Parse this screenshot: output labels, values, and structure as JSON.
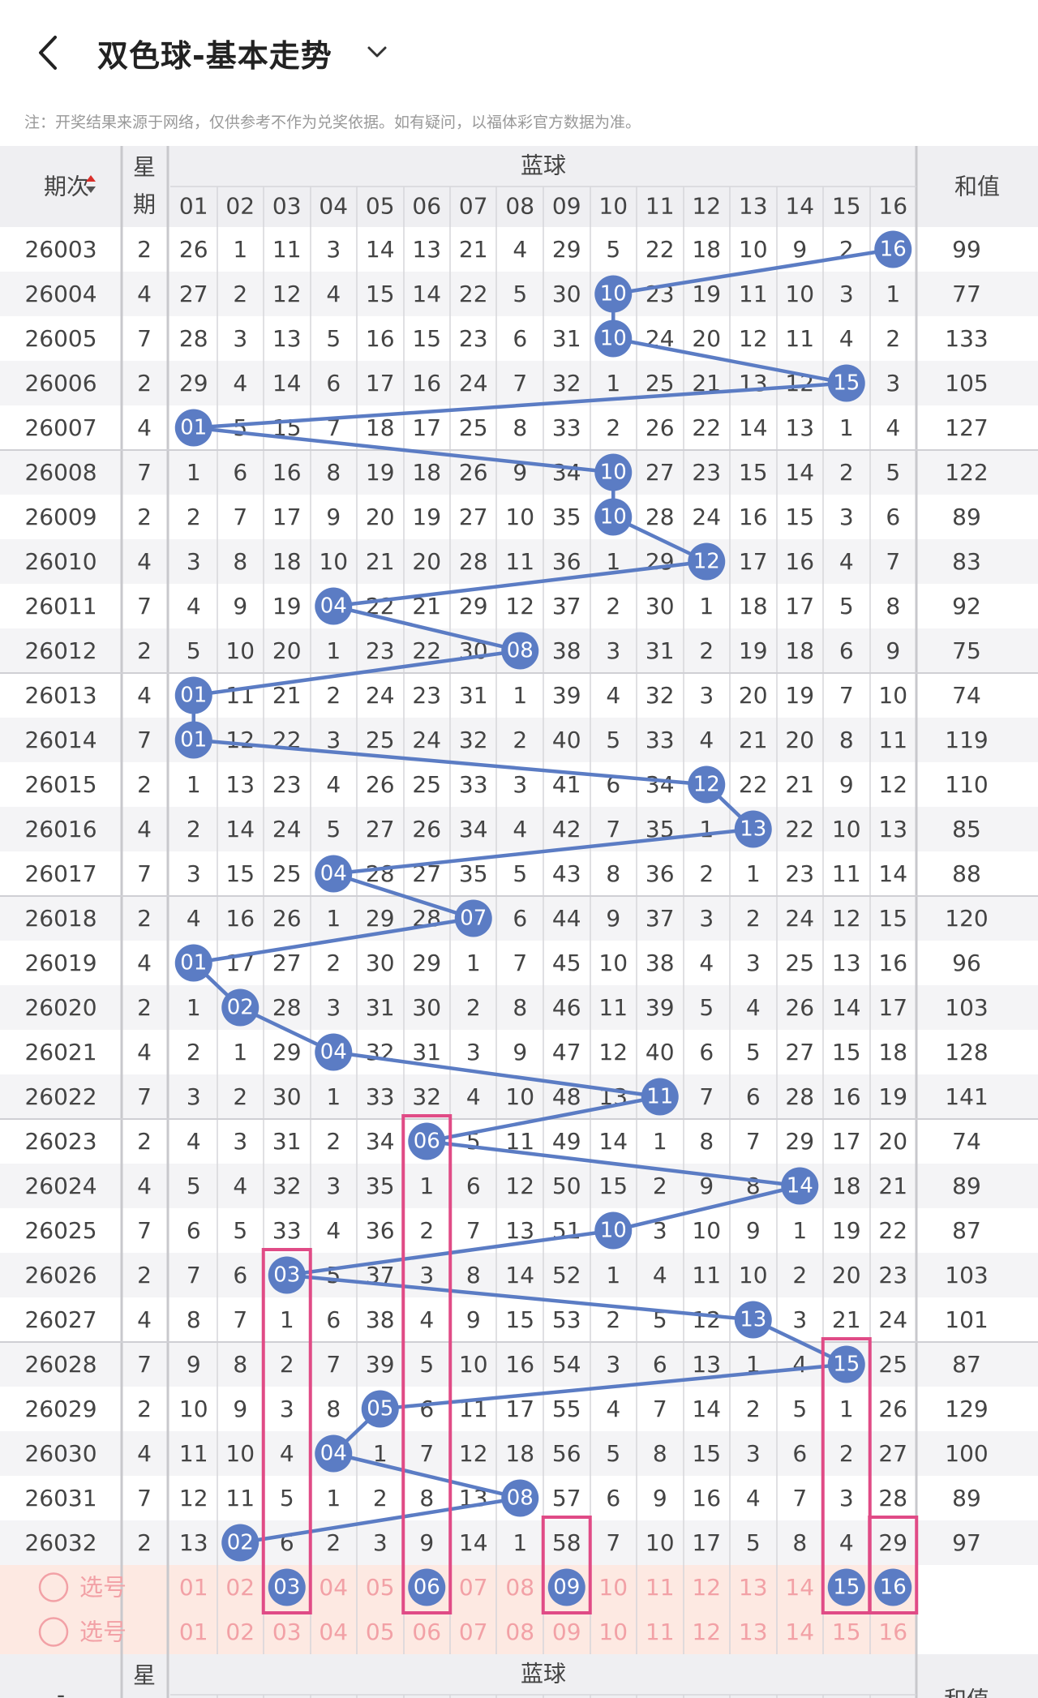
{
  "header": {
    "title": "双色球-基本走势",
    "note": "注：开奖结果来源于网络，仅供参考不作为兑奖依据。如有疑问，以福体彩官方数据为准。"
  },
  "table": {
    "col_period": "期次",
    "col_week_top": "星",
    "col_week_bottom": "期",
    "group_label": "蓝球",
    "col_sum": "和值",
    "ball_headers": [
      "01",
      "02",
      "03",
      "04",
      "05",
      "06",
      "07",
      "08",
      "09",
      "10",
      "11",
      "12",
      "13",
      "14",
      "15",
      "16"
    ],
    "rows": [
      {
        "period": "26003",
        "week": "2",
        "cells": [
          "26",
          "1",
          "11",
          "3",
          "14",
          "13",
          "21",
          "4",
          "29",
          "5",
          "22",
          "18",
          "10",
          "9",
          "2",
          "16"
        ],
        "hit": 16,
        "sum": "99"
      },
      {
        "period": "26004",
        "week": "4",
        "cells": [
          "27",
          "2",
          "12",
          "4",
          "15",
          "14",
          "22",
          "5",
          "30",
          "10",
          "23",
          "19",
          "11",
          "10",
          "3",
          "1"
        ],
        "hit": 10,
        "sum": "77"
      },
      {
        "period": "26005",
        "week": "7",
        "cells": [
          "28",
          "3",
          "13",
          "5",
          "16",
          "15",
          "23",
          "6",
          "31",
          "10",
          "24",
          "20",
          "12",
          "11",
          "4",
          "2"
        ],
        "hit": 10,
        "sum": "133"
      },
      {
        "period": "26006",
        "week": "2",
        "cells": [
          "29",
          "4",
          "14",
          "6",
          "17",
          "16",
          "24",
          "7",
          "32",
          "1",
          "25",
          "21",
          "13",
          "12",
          "15",
          "3"
        ],
        "hit": 15,
        "sum": "105"
      },
      {
        "period": "26007",
        "week": "4",
        "cells": [
          "01",
          "5",
          "15",
          "7",
          "18",
          "17",
          "25",
          "8",
          "33",
          "2",
          "26",
          "22",
          "14",
          "13",
          "1",
          "4"
        ],
        "hit": 1,
        "sum": "127"
      },
      {
        "period": "26008",
        "week": "7",
        "cells": [
          "1",
          "6",
          "16",
          "8",
          "19",
          "18",
          "26",
          "9",
          "34",
          "10",
          "27",
          "23",
          "15",
          "14",
          "2",
          "5"
        ],
        "hit": 10,
        "sum": "122"
      },
      {
        "period": "26009",
        "week": "2",
        "cells": [
          "2",
          "7",
          "17",
          "9",
          "20",
          "19",
          "27",
          "10",
          "35",
          "10",
          "28",
          "24",
          "16",
          "15",
          "3",
          "6"
        ],
        "hit": 10,
        "sum": "89"
      },
      {
        "period": "26010",
        "week": "4",
        "cells": [
          "3",
          "8",
          "18",
          "10",
          "21",
          "20",
          "28",
          "11",
          "36",
          "1",
          "29",
          "12",
          "17",
          "16",
          "4",
          "7"
        ],
        "hit": 12,
        "sum": "83"
      },
      {
        "period": "26011",
        "week": "7",
        "cells": [
          "4",
          "9",
          "19",
          "04",
          "22",
          "21",
          "29",
          "12",
          "37",
          "2",
          "30",
          "1",
          "18",
          "17",
          "5",
          "8"
        ],
        "hit": 4,
        "sum": "92"
      },
      {
        "period": "26012",
        "week": "2",
        "cells": [
          "5",
          "10",
          "20",
          "1",
          "23",
          "22",
          "30",
          "08",
          "38",
          "3",
          "31",
          "2",
          "19",
          "18",
          "6",
          "9"
        ],
        "hit": 8,
        "sum": "75"
      },
      {
        "period": "26013",
        "week": "4",
        "cells": [
          "01",
          "11",
          "21",
          "2",
          "24",
          "23",
          "31",
          "1",
          "39",
          "4",
          "32",
          "3",
          "20",
          "19",
          "7",
          "10"
        ],
        "hit": 1,
        "sum": "74"
      },
      {
        "period": "26014",
        "week": "7",
        "cells": [
          "01",
          "12",
          "22",
          "3",
          "25",
          "24",
          "32",
          "2",
          "40",
          "5",
          "33",
          "4",
          "21",
          "20",
          "8",
          "11"
        ],
        "hit": 1,
        "sum": "119"
      },
      {
        "period": "26015",
        "week": "2",
        "cells": [
          "1",
          "13",
          "23",
          "4",
          "26",
          "25",
          "33",
          "3",
          "41",
          "6",
          "34",
          "12",
          "22",
          "21",
          "9",
          "12"
        ],
        "hit": 12,
        "sum": "110"
      },
      {
        "period": "26016",
        "week": "4",
        "cells": [
          "2",
          "14",
          "24",
          "5",
          "27",
          "26",
          "34",
          "4",
          "42",
          "7",
          "35",
          "1",
          "13",
          "22",
          "10",
          "13"
        ],
        "hit": 13,
        "sum": "85"
      },
      {
        "period": "26017",
        "week": "7",
        "cells": [
          "3",
          "15",
          "25",
          "04",
          "28",
          "27",
          "35",
          "5",
          "43",
          "8",
          "36",
          "2",
          "1",
          "23",
          "11",
          "14"
        ],
        "hit": 4,
        "sum": "88"
      },
      {
        "period": "26018",
        "week": "2",
        "cells": [
          "4",
          "16",
          "26",
          "1",
          "29",
          "28",
          "07",
          "6",
          "44",
          "9",
          "37",
          "3",
          "2",
          "24",
          "12",
          "15"
        ],
        "hit": 7,
        "sum": "120"
      },
      {
        "period": "26019",
        "week": "4",
        "cells": [
          "01",
          "17",
          "27",
          "2",
          "30",
          "29",
          "1",
          "7",
          "45",
          "10",
          "38",
          "4",
          "3",
          "25",
          "13",
          "16"
        ],
        "hit": 1,
        "sum": "96"
      },
      {
        "period": "26020",
        "week": "2",
        "cells": [
          "1",
          "02",
          "28",
          "3",
          "31",
          "30",
          "2",
          "8",
          "46",
          "11",
          "39",
          "5",
          "4",
          "26",
          "14",
          "17"
        ],
        "hit": 2,
        "sum": "103"
      },
      {
        "period": "26021",
        "week": "4",
        "cells": [
          "2",
          "1",
          "29",
          "04",
          "32",
          "31",
          "3",
          "9",
          "47",
          "12",
          "40",
          "6",
          "5",
          "27",
          "15",
          "18"
        ],
        "hit": 4,
        "sum": "128"
      },
      {
        "period": "26022",
        "week": "7",
        "cells": [
          "3",
          "2",
          "30",
          "1",
          "33",
          "32",
          "4",
          "10",
          "48",
          "13",
          "11",
          "7",
          "6",
          "28",
          "16",
          "19"
        ],
        "hit": 11,
        "sum": "141"
      },
      {
        "period": "26023",
        "week": "2",
        "cells": [
          "4",
          "3",
          "31",
          "2",
          "34",
          "06",
          "5",
          "11",
          "49",
          "14",
          "1",
          "8",
          "7",
          "29",
          "17",
          "20"
        ],
        "hit": 6,
        "sum": "74"
      },
      {
        "period": "26024",
        "week": "4",
        "cells": [
          "5",
          "4",
          "32",
          "3",
          "35",
          "1",
          "6",
          "12",
          "50",
          "15",
          "2",
          "9",
          "8",
          "14",
          "18",
          "21"
        ],
        "hit": 14,
        "sum": "89"
      },
      {
        "period": "26025",
        "week": "7",
        "cells": [
          "6",
          "5",
          "33",
          "4",
          "36",
          "2",
          "7",
          "13",
          "51",
          "10",
          "3",
          "10",
          "9",
          "1",
          "19",
          "22"
        ],
        "hit": 10,
        "sum": "87"
      },
      {
        "period": "26026",
        "week": "2",
        "cells": [
          "7",
          "6",
          "03",
          "5",
          "37",
          "3",
          "8",
          "14",
          "52",
          "1",
          "4",
          "11",
          "10",
          "2",
          "20",
          "23"
        ],
        "hit": 3,
        "sum": "103"
      },
      {
        "period": "26027",
        "week": "4",
        "cells": [
          "8",
          "7",
          "1",
          "6",
          "38",
          "4",
          "9",
          "15",
          "53",
          "2",
          "5",
          "12",
          "13",
          "3",
          "21",
          "24"
        ],
        "hit": 13,
        "sum": "101"
      },
      {
        "period": "26028",
        "week": "7",
        "cells": [
          "9",
          "8",
          "2",
          "7",
          "39",
          "5",
          "10",
          "16",
          "54",
          "3",
          "6",
          "13",
          "1",
          "4",
          "15",
          "25"
        ],
        "hit": 15,
        "sum": "87"
      },
      {
        "period": "26029",
        "week": "2",
        "cells": [
          "10",
          "9",
          "3",
          "8",
          "05",
          "6",
          "11",
          "17",
          "55",
          "4",
          "7",
          "14",
          "2",
          "5",
          "1",
          "26"
        ],
        "hit": 5,
        "sum": "129"
      },
      {
        "period": "26030",
        "week": "4",
        "cells": [
          "11",
          "10",
          "4",
          "04",
          "1",
          "7",
          "12",
          "18",
          "56",
          "5",
          "8",
          "15",
          "3",
          "6",
          "2",
          "27"
        ],
        "hit": 4,
        "sum": "100"
      },
      {
        "period": "26031",
        "week": "7",
        "cells": [
          "12",
          "11",
          "5",
          "1",
          "2",
          "8",
          "13",
          "08",
          "57",
          "6",
          "9",
          "16",
          "4",
          "7",
          "3",
          "28"
        ],
        "hit": 8,
        "sum": "89"
      },
      {
        "period": "26032",
        "week": "2",
        "cells": [
          "13",
          "02",
          "6",
          "2",
          "3",
          "9",
          "14",
          "1",
          "58",
          "7",
          "10",
          "17",
          "5",
          "8",
          "4",
          "29"
        ],
        "hit": 2,
        "sum": "97"
      }
    ],
    "select_label": "选号",
    "select_rows": [
      {
        "label": "选号",
        "selected": [
          3,
          6,
          9,
          15,
          16
        ]
      },
      {
        "label": "选号",
        "selected": []
      }
    ]
  },
  "highlight_columns": [
    3,
    6,
    15
  ],
  "highlight_cells": [
    {
      "row": 29,
      "col": 9
    },
    {
      "row": 29,
      "col": 16
    }
  ],
  "colors": {
    "ball": "#5b7cc4",
    "line": "#5b7cc4",
    "highlight": "#e04b86",
    "select_bg": "#fde9e2",
    "select_text": "#f2a1a6",
    "odd_row": "#ffffff",
    "even_row": "#f4f4f6",
    "header_bg": "#efeff2"
  },
  "icons": {
    "back": "chevron-left-icon",
    "dropdown": "chevron-down-icon",
    "sort": "sort-updown-icon",
    "radio": "radio-empty-icon"
  }
}
